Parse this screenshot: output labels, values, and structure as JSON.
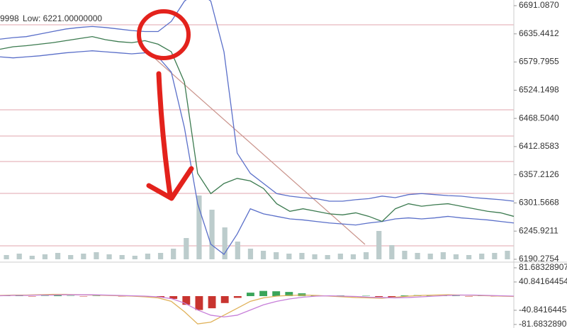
{
  "chart_data": [
    {
      "type": "line",
      "annotations": [
        "9998",
        "Low: 6221.00000000"
      ],
      "ylim": [
        6190.2754,
        6691.087
      ],
      "yticks": [
        {
          "value": 6691.087,
          "label": "6691.0870"
        },
        6635.4412,
        6579.7955,
        6524.1498,
        {
          "value": 6468.504,
          "label": "6468.5040"
        },
        6412.8583,
        6357.2126,
        6301.5668,
        6245.9211,
        6190.2754
      ],
      "series": [
        {
          "color": "#5a6fc9",
          "values": [
            6625,
            6628,
            6630,
            6635,
            6640,
            6645,
            6648,
            6650,
            6648,
            6645,
            6642,
            6640,
            6640,
            6660,
            6700,
            6720,
            6700,
            6600,
            6400,
            6360,
            6340,
            6320,
            6315,
            6312,
            6310,
            6305,
            6305,
            6308,
            6310,
            6315,
            6312,
            6318,
            6320,
            6318,
            6316,
            6315,
            6312,
            6310,
            6308,
            6305
          ]
        },
        {
          "color": "#5a6fc9",
          "values": [
            6590,
            6588,
            6590,
            6592,
            6595,
            6598,
            6600,
            6602,
            6600,
            6598,
            6596,
            6598,
            6590,
            6560,
            6450,
            6300,
            6220,
            6200,
            6240,
            6290,
            6280,
            6275,
            6270,
            6268,
            6265,
            6262,
            6260,
            6258,
            6262,
            6265,
            6270,
            6272,
            6270,
            6272,
            6275,
            6272,
            6270,
            6268,
            6265,
            6262
          ]
        },
        {
          "color": "#3b7a4f",
          "values": [
            6605,
            6610,
            6612,
            6615,
            6618,
            6622,
            6626,
            6630,
            6624,
            6620,
            6618,
            6622,
            6615,
            6600,
            6540,
            6360,
            6320,
            6340,
            6350,
            6345,
            6330,
            6300,
            6285,
            6290,
            6285,
            6280,
            6278,
            6282,
            6275,
            6265,
            6290,
            6300,
            6295,
            6298,
            6300,
            6295,
            6290,
            6285,
            6282,
            6275
          ]
        }
      ],
      "volume": {
        "color": "#bccccc",
        "values": [
          6,
          8,
          5,
          7,
          9,
          6,
          8,
          10,
          7,
          6,
          5,
          8,
          9,
          15,
          30,
          90,
          70,
          45,
          25,
          15,
          12,
          10,
          8,
          9,
          7,
          6,
          8,
          7,
          10,
          40,
          20,
          12,
          9,
          8,
          10,
          7,
          6,
          8,
          9,
          12
        ]
      }
    },
    {
      "type": "macd",
      "ylim": [
        {
          "value": -81.683289,
          "label": "-81.6832890"
        },
        81.68328907
      ],
      "yticks": [
        81.68328907,
        40.84164454,
        -40.8416445,
        {
          "value": -81.683289,
          "label": "-81.6832890"
        }
      ],
      "histogram": [
        1,
        1,
        -1,
        1,
        2,
        1,
        -1,
        1,
        0,
        -1,
        1,
        -2,
        -3,
        -8,
        -25,
        -40,
        -35,
        -20,
        -5,
        10,
        15,
        14,
        12,
        8,
        3,
        1,
        2,
        -1,
        1,
        -2,
        -3,
        2,
        3,
        1,
        2,
        1,
        -1,
        1,
        -1,
        -1
      ],
      "colors": [
        "#3aa55a",
        "#c8342f"
      ],
      "series": [
        {
          "color": "#e0b25a",
          "values": [
            2,
            3,
            3,
            4,
            5,
            5,
            4,
            3,
            2,
            1,
            0,
            -2,
            -5,
            -15,
            -45,
            -80,
            -75,
            -55,
            -35,
            -15,
            -5,
            0,
            2,
            3,
            2,
            0,
            -2,
            -4,
            -5,
            -6,
            -3,
            0,
            2,
            3,
            4,
            3,
            2,
            1,
            0,
            -1
          ]
        },
        {
          "color": "#c77fd9",
          "values": [
            1,
            2,
            2,
            3,
            3,
            4,
            4,
            4,
            3,
            2,
            1,
            0,
            -2,
            -7,
            -20,
            -40,
            -55,
            -60,
            -55,
            -40,
            -25,
            -15,
            -8,
            -3,
            0,
            1,
            0,
            -1,
            -3,
            -4,
            -5,
            -4,
            -2,
            0,
            2,
            3,
            3,
            2,
            1,
            0
          ]
        }
      ]
    }
  ]
}
